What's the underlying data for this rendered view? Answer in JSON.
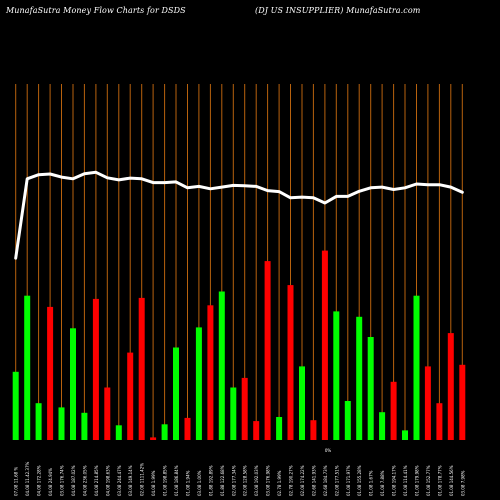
{
  "header": {
    "title_left": "MunafaSutra  Money Flow  Charts for DSDS",
    "title_right": "(DJ US INSUPPLIER) MunafaSutra.com"
  },
  "colors": {
    "background": "#000000",
    "gridline": "#b8620e",
    "buy": "#00ff00",
    "sell": "#ff0000",
    "line": "#ffffff",
    "label": "#ffffff"
  },
  "chart_data": {
    "type": "bar",
    "bar_axis": {
      "min": 0,
      "max": 100
    },
    "line_axis": {
      "min": 0,
      "max": 100
    },
    "gridlines": true,
    "x_unit_label": "0%",
    "categories": [
      "07.08 11.68 %",
      "04.08 11.42.37%",
      "04.08 172.28%",
      "04.08 24.94%",
      "03.08 176.74%",
      "04.08 187.02%",
      "04.08 236.05%",
      "04.08 214.85%",
      "04.08 198.63%",
      "03.08 244.47%",
      "03.08 149.14%",
      "02.08 1111.42%",
      "04.08 1.99%",
      "01.08 198.85%",
      "01.08 186.84%",
      "01.08 1.94%",
      "03.08 1.00%",
      "01.88 192.89%",
      "01.88 122.68%",
      "02.08 177.34%",
      "02.08 128.58%",
      "03.08 192.03%",
      "03.08 176.98%",
      "02.78 1.99%",
      "02.78 190.27%",
      "02.08 174.22%",
      "02.68 141.93%",
      "02.68 184.73%",
      "02.08 177.51%",
      "01.08 171.97%",
      "01.08 155.28%",
      "01.08 1.67%",
      "01.08 7.88%",
      "01.08 194.17%",
      "01.08 114.41%",
      "01.08 179.98%",
      "01.08 152.77%",
      "01.08 178.77%",
      "01.08 144.56%",
      "03.08 7.98%"
    ],
    "bars": [
      {
        "value": 21.3,
        "dir": "buy"
      },
      {
        "value": 45.1,
        "dir": "buy"
      },
      {
        "value": 11.5,
        "dir": "buy"
      },
      {
        "value": 41.6,
        "dir": "sell"
      },
      {
        "value": 10.2,
        "dir": "buy"
      },
      {
        "value": 34.9,
        "dir": "buy"
      },
      {
        "value": 8.5,
        "dir": "buy"
      },
      {
        "value": 44.1,
        "dir": "sell"
      },
      {
        "value": 16.4,
        "dir": "sell"
      },
      {
        "value": 4.6,
        "dir": "buy"
      },
      {
        "value": 27.3,
        "dir": "sell"
      },
      {
        "value": 44.4,
        "dir": "sell"
      },
      {
        "value": 0.8,
        "dir": "sell"
      },
      {
        "value": 4.9,
        "dir": "buy"
      },
      {
        "value": 28.9,
        "dir": "buy"
      },
      {
        "value": 6.9,
        "dir": "sell"
      },
      {
        "value": 35.2,
        "dir": "buy"
      },
      {
        "value": 42.1,
        "dir": "sell"
      },
      {
        "value": 46.4,
        "dir": "buy"
      },
      {
        "value": 16.4,
        "dir": "buy"
      },
      {
        "value": 19.4,
        "dir": "sell"
      },
      {
        "value": 5.9,
        "dir": "sell"
      },
      {
        "value": 55.9,
        "dir": "sell"
      },
      {
        "value": 7.2,
        "dir": "buy"
      },
      {
        "value": 48.4,
        "dir": "sell"
      },
      {
        "value": 23.0,
        "dir": "buy"
      },
      {
        "value": 6.2,
        "dir": "sell"
      },
      {
        "value": 59.2,
        "dir": "sell"
      },
      {
        "value": 40.2,
        "dir": "buy"
      },
      {
        "value": 12.2,
        "dir": "buy"
      },
      {
        "value": 38.5,
        "dir": "buy"
      },
      {
        "value": 32.2,
        "dir": "buy"
      },
      {
        "value": 8.7,
        "dir": "buy"
      },
      {
        "value": 18.2,
        "dir": "sell"
      },
      {
        "value": 3.0,
        "dir": "buy"
      },
      {
        "value": 45.1,
        "dir": "buy"
      },
      {
        "value": 23.0,
        "dir": "sell"
      },
      {
        "value": 11.5,
        "dir": "sell"
      },
      {
        "value": 33.4,
        "dir": "sell"
      },
      {
        "value": 23.5,
        "dir": "sell"
      }
    ],
    "line": [
      52.7,
      75.7,
      76.9,
      77.1,
      76.2,
      75.7,
      77.2,
      77.6,
      76.0,
      75.4,
      75.9,
      75.7,
      74.6,
      74.6,
      74.8,
      73.1,
      73.5,
      72.8,
      73.3,
      73.8,
      73.7,
      73.5,
      72.3,
      72.0,
      70.2,
      70.4,
      70.2,
      68.7,
      70.6,
      70.6,
      72.1,
      73.1,
      73.3,
      72.6,
      73.1,
      74.2,
      74.0,
      74.0,
      73.3,
      71.8
    ]
  }
}
